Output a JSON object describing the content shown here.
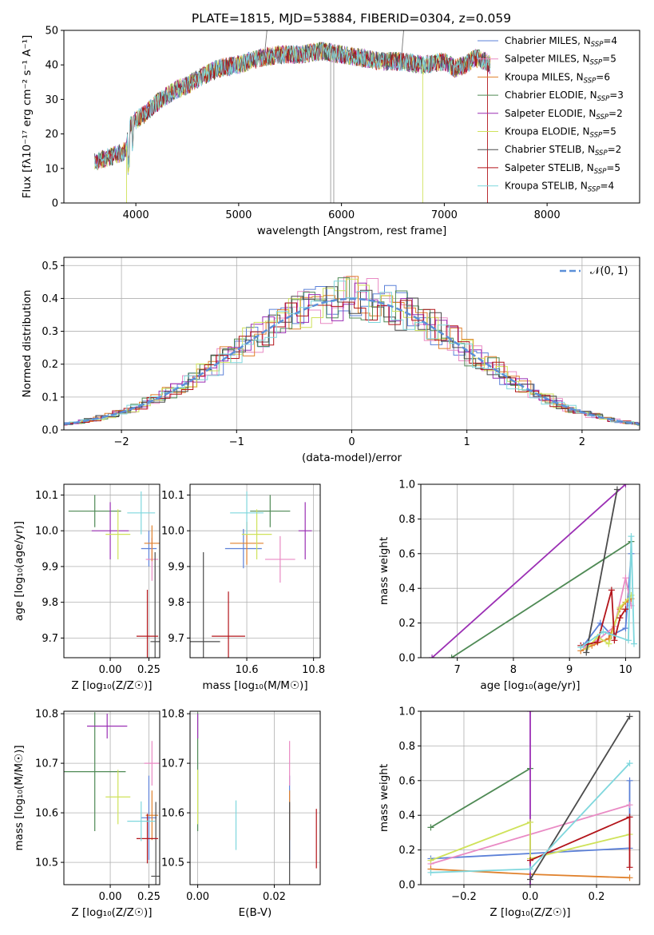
{
  "title": "PLATE=1815, MJD=53884, FIBERID=0304, z=0.059",
  "series_colors": [
    "#5b80d8",
    "#e98ac4",
    "#e0812c",
    "#4f8a55",
    "#9b2fb4",
    "#cfe25a",
    "#4b4b4b",
    "#b3141a",
    "#7fd7dd"
  ],
  "chart_data": [
    {
      "id": "spectrum",
      "type": "line",
      "xlabel": "wavelength [Angstrom, rest frame]",
      "ylabel": "Flux [fλ10⁻¹⁷ erg cm⁻² s⁻¹ A⁻¹]",
      "xlim": [
        3300,
        8900
      ],
      "ylim": [
        0,
        50
      ],
      "xticks": [
        4000,
        5000,
        6000,
        7000,
        8000
      ],
      "yticks": [
        0,
        10,
        20,
        30,
        40,
        50
      ],
      "grid": false,
      "legend_position": "right",
      "data_range_x": [
        3600,
        7450
      ],
      "continuum": {
        "x": [
          3600,
          3700,
          3800,
          3900,
          3950,
          4000,
          4100,
          4200,
          4300,
          4400,
          4500,
          4600,
          4800,
          5000,
          5200,
          5400,
          5600,
          5800,
          6000,
          6200,
          6400,
          6600,
          6800,
          7000,
          7100,
          7200,
          7300,
          7400,
          7450
        ],
        "y": [
          12,
          13,
          14,
          15,
          23,
          24,
          26,
          29,
          31,
          33,
          34,
          36,
          39,
          40,
          42,
          43,
          43,
          44,
          43,
          42,
          41,
          41,
          40,
          41,
          39,
          40,
          42,
          41,
          40
        ]
      },
      "series": [
        {
          "name": "Chabrier MILES, N_SSP=4"
        },
        {
          "name": "Salpeter MILES, N_SSP=5"
        },
        {
          "name": "Kroupa MILES, N_SSP=6"
        },
        {
          "name": "Chabrier ELODIE, N_SSP=3"
        },
        {
          "name": "Salpeter ELODIE, N_SSP=2"
        },
        {
          "name": "Kroupa ELODIE, N_SSP=5"
        },
        {
          "name": "Chabrier STELIB, N_SSP=2"
        },
        {
          "name": "Salpeter STELIB, N_SSP=5"
        },
        {
          "name": "Kroupa STELIB, N_SSP=4"
        }
      ]
    },
    {
      "id": "residuals",
      "type": "line",
      "xlabel": "(data-model)/error",
      "ylabel": "Normed distribution",
      "xlim": [
        -2.5,
        2.5
      ],
      "ylim": [
        0,
        0.525
      ],
      "xticks": [
        -2,
        -1,
        0,
        1,
        2
      ],
      "yticks": [
        0.0,
        0.1,
        0.2,
        0.3,
        0.4,
        0.5
      ],
      "grid": true,
      "legend_position": "top-right",
      "legend_label": "𝒩(0, 1)",
      "gaussian": {
        "mean": 0,
        "sigma": 1
      }
    },
    {
      "id": "age-vs-Z",
      "type": "scatter",
      "xlabel": "Z [log₁₀(Z/Z☉)]",
      "ylabel": "age  [log₁₀(age/yr)]",
      "xlim": [
        -0.3,
        0.32
      ],
      "ylim": [
        9.645,
        10.13
      ],
      "xticks": [
        0.0,
        0.25
      ],
      "yticks": [
        9.7,
        9.8,
        9.9,
        10.0,
        10.1
      ],
      "grid": true,
      "points": [
        {
          "x": 0.25,
          "y": 9.95,
          "xerr": 0.05,
          "yerr": 0.05
        },
        {
          "x": 0.27,
          "y": 9.92,
          "xerr": 0.04,
          "yerr": 0.06
        },
        {
          "x": 0.27,
          "y": 9.965,
          "xerr": 0.05,
          "yerr": 0.05
        },
        {
          "x": -0.1,
          "y": 10.055,
          "xerr": 0.17,
          "yerr": 0.045
        },
        {
          "x": 0.0,
          "y": 10.0,
          "xerr": 0.12,
          "yerr": 0.08
        },
        {
          "x": 0.05,
          "y": 9.99,
          "xerr": 0.08,
          "yerr": 0.07
        },
        {
          "x": 0.29,
          "y": 9.69,
          "xerr": 0.03,
          "yerr": 0.25
        },
        {
          "x": 0.24,
          "y": 9.705,
          "xerr": 0.07,
          "yerr": 0.13
        },
        {
          "x": 0.2,
          "y": 10.05,
          "xerr": 0.09,
          "yerr": 0.06
        }
      ]
    },
    {
      "id": "age-vs-mass",
      "type": "scatter",
      "xlabel": "mass [log₁₀(M/M☉)]",
      "xlim": [
        10.43,
        10.82
      ],
      "ylim": [
        9.645,
        10.13
      ],
      "xticks": [
        10.6,
        10.8
      ],
      "yticks": [
        9.7,
        9.8,
        9.9,
        10.0,
        10.1
      ],
      "grid": true,
      "points": [
        {
          "x": 10.59,
          "y": 9.95,
          "xerr": 0.055,
          "yerr": 0.055
        },
        {
          "x": 10.7,
          "y": 9.92,
          "xerr": 0.045,
          "yerr": 0.065
        },
        {
          "x": 10.6,
          "y": 9.965,
          "xerr": 0.05,
          "yerr": 0.06
        },
        {
          "x": 10.67,
          "y": 10.055,
          "xerr": 0.06,
          "yerr": 0.045
        },
        {
          "x": 10.775,
          "y": 10.0,
          "xerr": 0.02,
          "yerr": 0.08
        },
        {
          "x": 10.63,
          "y": 9.99,
          "xerr": 0.045,
          "yerr": 0.07
        },
        {
          "x": 10.47,
          "y": 9.69,
          "xerr": 0.05,
          "yerr": 0.25
        },
        {
          "x": 10.545,
          "y": 9.705,
          "xerr": 0.05,
          "yerr": 0.125
        },
        {
          "x": 10.6,
          "y": 10.05,
          "xerr": 0.05,
          "yerr": 0.06
        }
      ]
    },
    {
      "id": "weights-vs-age",
      "type": "line",
      "xlabel": "age  [log₁₀(age/yr)]",
      "ylabel": "mass weight",
      "xlim": [
        6.35,
        10.25
      ],
      "ylim": [
        0,
        1
      ],
      "xticks": [
        7,
        8,
        9,
        10
      ],
      "yticks": [
        0.0,
        0.2,
        0.4,
        0.6,
        0.8,
        1.0
      ],
      "grid": true,
      "series": [
        {
          "x": [
            9.25,
            9.55,
            9.75,
            10.0,
            10.1
          ],
          "y": [
            0.07,
            0.2,
            0.13,
            0.17,
            0.6
          ]
        },
        {
          "x": [
            9.25,
            9.5,
            9.8,
            10.0,
            10.1
          ],
          "y": [
            0.06,
            0.1,
            0.18,
            0.46,
            0.3
          ]
        },
        {
          "x": [
            9.2,
            9.4,
            9.7,
            9.9,
            10.0,
            10.1
          ],
          "y": [
            0.04,
            0.07,
            0.11,
            0.28,
            0.32,
            0.34
          ]
        },
        {
          "x": [
            6.9,
            10.1
          ],
          "y": [
            0.0,
            0.67
          ]
        },
        {
          "x": [
            6.55,
            10.0
          ],
          "y": [
            0.0,
            1.0
          ]
        },
        {
          "x": [
            9.3,
            9.5,
            9.7,
            9.9,
            10.1
          ],
          "y": [
            0.05,
            0.12,
            0.08,
            0.29,
            0.36
          ]
        },
        {
          "x": [
            9.3,
            9.85
          ],
          "y": [
            0.03,
            0.97
          ]
        },
        {
          "x": [
            9.2,
            9.5,
            9.75,
            9.8,
            9.9,
            10.0
          ],
          "y": [
            0.07,
            0.09,
            0.39,
            0.1,
            0.23,
            0.28
          ]
        },
        {
          "x": [
            9.2,
            9.6,
            10.05,
            10.1,
            10.15
          ],
          "y": [
            0.06,
            0.15,
            0.1,
            0.7,
            0.08
          ]
        }
      ]
    },
    {
      "id": "mass-vs-Z",
      "type": "scatter",
      "xlabel": "Z [log₁₀(Z/Z☉)]",
      "ylabel": "mass [log₁₀(M/M☉)]",
      "xlim": [
        -0.3,
        0.32
      ],
      "ylim": [
        10.455,
        10.805
      ],
      "xticks": [
        0.0,
        0.25
      ],
      "yticks": [
        10.5,
        10.6,
        10.7,
        10.8
      ],
      "grid": true,
      "points": [
        {
          "x": 0.25,
          "y": 10.59,
          "xerr": 0.05,
          "yerr": 0.085
        },
        {
          "x": 0.27,
          "y": 10.7,
          "xerr": 0.05,
          "yerr": 0.045
        },
        {
          "x": 0.27,
          "y": 10.595,
          "xerr": 0.04,
          "yerr": 0.05
        },
        {
          "x": -0.1,
          "y": 10.683,
          "xerr": 0.2,
          "yerr": 0.12
        },
        {
          "x": -0.02,
          "y": 10.775,
          "xerr": 0.13,
          "yerr": 0.025
        },
        {
          "x": 0.05,
          "y": 10.632,
          "xerr": 0.08,
          "yerr": 0.055
        },
        {
          "x": 0.295,
          "y": 10.472,
          "xerr": 0.03,
          "yerr": 0.15
        },
        {
          "x": 0.24,
          "y": 10.548,
          "xerr": 0.07,
          "yerr": 0.05
        },
        {
          "x": 0.2,
          "y": 10.583,
          "xerr": 0.09,
          "yerr": 0.04
        }
      ]
    },
    {
      "id": "Ebv-vs-mass",
      "type": "scatter",
      "xlabel": "E(B-V)",
      "xlim": [
        -0.002,
        0.032
      ],
      "ylim": [
        10.455,
        10.805
      ],
      "xticks": [
        0.0,
        0.02
      ],
      "yticks": [
        10.5,
        10.6,
        10.7,
        10.8
      ],
      "grid": true,
      "points": [
        {
          "x": 0.024,
          "y": 10.59,
          "yerr": 0.085
        },
        {
          "x": 0.024,
          "y": 10.7,
          "yerr": 0.045
        },
        {
          "x": 0.024,
          "y": 10.595,
          "yerr": 0.05
        },
        {
          "x": 0.0,
          "y": 10.683,
          "yerr": 0.12
        },
        {
          "x": 0.0,
          "y": 10.775,
          "yerr": 0.025
        },
        {
          "x": 0.0,
          "y": 10.632,
          "yerr": 0.055
        },
        {
          "x": 0.024,
          "y": 10.472,
          "yerr": 0.15
        },
        {
          "x": 0.031,
          "y": 10.548,
          "yerr": 0.06
        },
        {
          "x": 0.01,
          "y": 10.575,
          "yerr": 0.05
        }
      ]
    },
    {
      "id": "weights-vs-Z",
      "type": "line",
      "xlabel": "Z [log₁₀(Z/Z☉)]",
      "ylabel": "mass weight",
      "xlim": [
        -0.33,
        0.33
      ],
      "ylim": [
        0,
        1
      ],
      "xticks": [
        -0.2,
        0.0,
        0.2
      ],
      "yticks": [
        0.0,
        0.2,
        0.4,
        0.6,
        0.8,
        1.0
      ],
      "grid": true,
      "series": [
        {
          "x": [
            -0.3,
            0.3,
            0.3
          ],
          "y": [
            0.15,
            0.21,
            0.6
          ]
        },
        {
          "x": [
            -0.3,
            0.3
          ],
          "y": [
            0.12,
            0.46
          ]
        },
        {
          "x": [
            -0.3,
            0.0,
            0.3
          ],
          "y": [
            0.09,
            0.06,
            0.04
          ]
        },
        {
          "x": [
            -0.3,
            0.0
          ],
          "y": [
            0.33,
            0.67
          ]
        },
        {
          "x": [
            0.0,
            0.0
          ],
          "y": [
            0.0,
            1.0
          ]
        },
        {
          "x": [
            -0.3,
            0.0,
            0.0,
            0.3
          ],
          "y": [
            0.14,
            0.36,
            0.15,
            0.29
          ]
        },
        {
          "x": [
            0.0,
            0.3
          ],
          "y": [
            0.03,
            0.97
          ]
        },
        {
          "x": [
            0.0,
            0.3,
            0.3
          ],
          "y": [
            0.14,
            0.39,
            0.1
          ]
        },
        {
          "x": [
            -0.3,
            0.0,
            0.3
          ],
          "y": [
            0.07,
            0.09,
            0.7
          ]
        }
      ]
    }
  ]
}
